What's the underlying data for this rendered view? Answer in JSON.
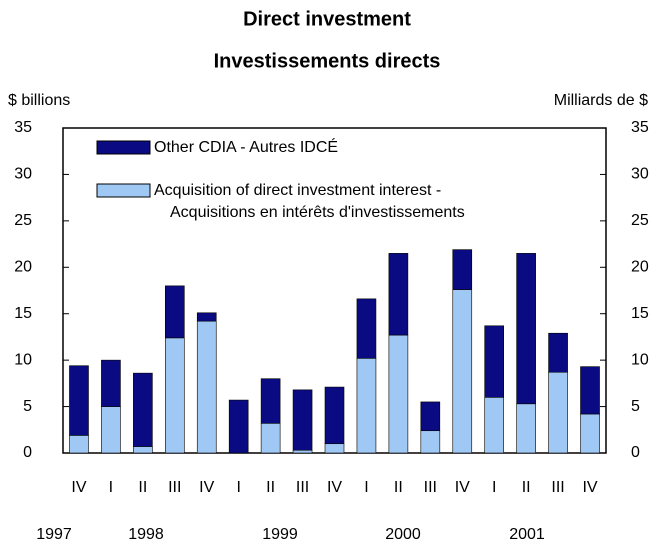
{
  "chart_data": {
    "type": "stacked_bar",
    "title": "Direct investment",
    "subtitle": "Investissements directs",
    "y_label": "$ billions",
    "y2_label": "Milliards de $",
    "categories": [
      "IV",
      "I",
      "II",
      "III",
      "IV",
      "I",
      "II",
      "III",
      "IV",
      "I",
      "II",
      "III",
      "IV",
      "I",
      "II",
      "III",
      "IV"
    ],
    "years": [
      "1997",
      "1998",
      "1999",
      "2000",
      "2001"
    ],
    "series": [
      {
        "name": "Acquisition of direct investment interest -\nAcquisitions en intérêts d'investissements",
        "color": "#9fc8f5",
        "values": [
          1.9,
          5.0,
          0.7,
          12.4,
          14.2,
          0,
          3.2,
          0.3,
          1.0,
          10.2,
          12.7,
          2.4,
          17.6,
          6.0,
          5.3,
          8.7,
          4.2
        ]
      },
      {
        "name": "Other CDIA - Autres IDCÉ",
        "color": "#0a0a82",
        "values": [
          7.5,
          5.0,
          7.9,
          5.6,
          0.9,
          5.7,
          4.8,
          6.5,
          6.1,
          6.4,
          8.8,
          3.1,
          4.3,
          7.7,
          16.2,
          4.2,
          5.1
        ]
      }
    ],
    "ylim": [
      0,
      35
    ],
    "yticks": [
      0,
      5,
      10,
      15,
      20,
      25,
      30,
      35
    ],
    "y2lim": [
      0,
      35
    ],
    "y2ticks": [
      0,
      5,
      10,
      15,
      20,
      25,
      30,
      35
    ],
    "grid": false
  }
}
